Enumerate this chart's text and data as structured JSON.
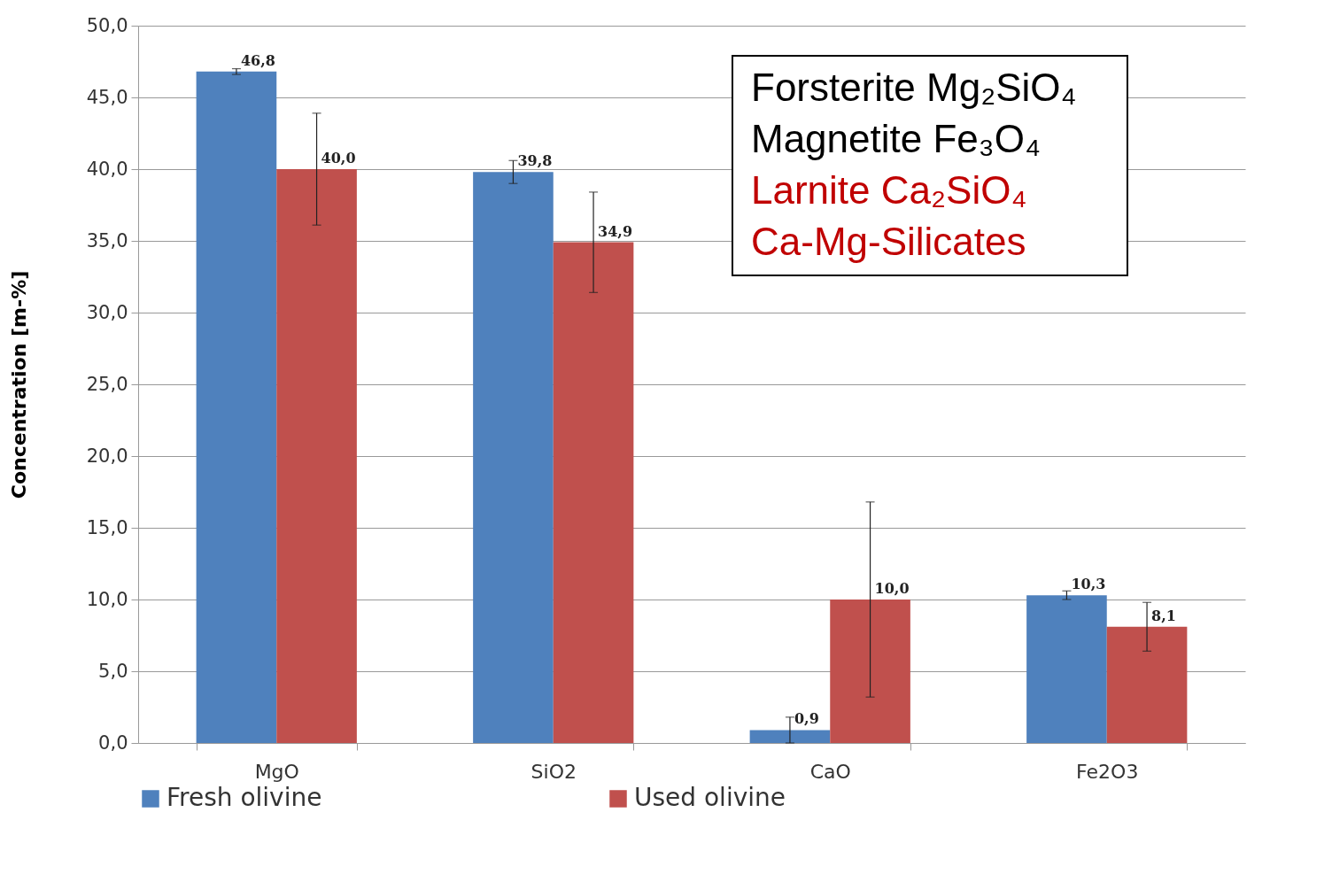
{
  "chart_data": {
    "type": "bar",
    "ylabel": "Concentration [m-%]",
    "categories": [
      "MgO",
      "SiO2",
      "CaO",
      "Fe2O3"
    ],
    "series": [
      {
        "name": "Fresh olivine",
        "color": "#4f81bd",
        "values": [
          46.8,
          39.8,
          0.9,
          10.3
        ],
        "errors": [
          0.2,
          0.8,
          0.9,
          0.3
        ],
        "value_labels": [
          "46,8",
          "39,8",
          "0,9",
          "10,3"
        ]
      },
      {
        "name": "Used olivine",
        "color": "#c0504d",
        "values": [
          40.0,
          34.9,
          10.0,
          8.1
        ],
        "errors": [
          3.9,
          3.5,
          6.8,
          1.7
        ],
        "value_labels": [
          "40,0",
          "34,9",
          "10,0",
          "8,1"
        ]
      }
    ],
    "ylim": [
      0,
      50
    ],
    "yticks": [
      {
        "value": 0,
        "label": "0,0"
      },
      {
        "value": 5,
        "label": "5,0"
      },
      {
        "value": 10,
        "label": "10,0"
      },
      {
        "value": 15,
        "label": "15,0"
      },
      {
        "value": 20,
        "label": "20,0"
      },
      {
        "value": 25,
        "label": "25,0"
      },
      {
        "value": 30,
        "label": "30,0"
      },
      {
        "value": 35,
        "label": "35,0"
      },
      {
        "value": 40,
        "label": "40,0"
      },
      {
        "value": 45,
        "label": "45,0"
      },
      {
        "value": 50,
        "label": "50,0"
      }
    ],
    "grid": "y",
    "legend": "bottom",
    "annotations": [
      "Forsterite Mg₂SiO₄",
      "Magnetite Fe₃O₄",
      "Larnite Ca₂SiO₄",
      "Ca-Mg-Silicates"
    ]
  }
}
